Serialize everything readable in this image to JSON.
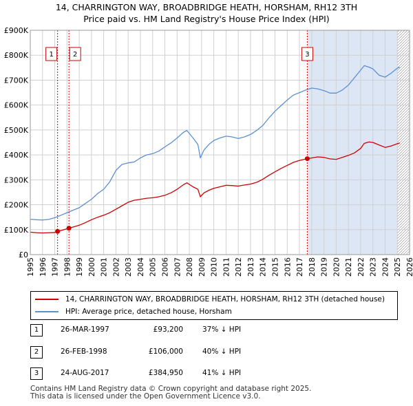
{
  "title_line1": "14, CHARRINGTON WAY, BROADBRIDGE HEATH, HORSHAM, RH12 3TH",
  "title_line2": "Price paid vs. HM Land Registry's House Price Index (HPI)",
  "colors": {
    "property": "#cc0000",
    "hpi": "#5b8fd0",
    "shade": "#dde6f5",
    "marker_line": "#cc0000",
    "grid": "#d0d0d0",
    "hatch": "#999999"
  },
  "chart_data": {
    "type": "line",
    "xlim": [
      1995,
      2026
    ],
    "ylim": [
      0,
      900000
    ],
    "y_ticks": [
      {
        "value": 0,
        "label": "£0"
      },
      {
        "value": 100000,
        "label": "£100K"
      },
      {
        "value": 200000,
        "label": "£200K"
      },
      {
        "value": 300000,
        "label": "£300K"
      },
      {
        "value": 400000,
        "label": "£400K"
      },
      {
        "value": 500000,
        "label": "£500K"
      },
      {
        "value": 600000,
        "label": "£600K"
      },
      {
        "value": 700000,
        "label": "£700K"
      },
      {
        "value": 800000,
        "label": "£800K"
      },
      {
        "value": 900000,
        "label": "£900K"
      }
    ],
    "x_ticks": [
      "1995",
      "1996",
      "1997",
      "1998",
      "1999",
      "2000",
      "2001",
      "2002",
      "2003",
      "2004",
      "2005",
      "2006",
      "2007",
      "2008",
      "2009",
      "2010",
      "2011",
      "2012",
      "2013",
      "2014",
      "2015",
      "2016",
      "2017",
      "2018",
      "2019",
      "2020",
      "2021",
      "2022",
      "2023",
      "2024",
      "2025",
      "2026"
    ],
    "grid": true,
    "series": [
      {
        "name": "14, CHARRINGTON WAY, BROADBRIDGE HEATH, HORSHAM, RH12 3TH (detached house)",
        "color": "#cc0000",
        "x": [
          1995.0,
          1995.5,
          1996.0,
          1996.5,
          1997.0,
          1997.23,
          1997.6,
          1998.16,
          1998.6,
          1999.0,
          1999.5,
          2000.0,
          2000.5,
          2001.0,
          2001.5,
          2002.0,
          2002.5,
          2003.0,
          2003.5,
          2004.0,
          2004.5,
          2005.0,
          2005.5,
          2006.0,
          2006.5,
          2007.0,
          2007.5,
          2007.8,
          2008.3,
          2008.7,
          2008.9,
          2009.2,
          2009.6,
          2010.0,
          2010.5,
          2011.0,
          2011.5,
          2012.0,
          2012.5,
          2013.0,
          2013.5,
          2014.0,
          2014.5,
          2015.0,
          2015.5,
          2016.0,
          2016.5,
          2017.0,
          2017.64,
          2018.0,
          2018.5,
          2019.0,
          2019.5,
          2020.0,
          2020.5,
          2021.0,
          2021.5,
          2022.0,
          2022.3,
          2022.7,
          2023.0,
          2023.5,
          2024.0,
          2024.5,
          2025.0,
          2025.2
        ],
        "y": [
          90000,
          88000,
          87000,
          88000,
          89000,
          93200,
          98000,
          106000,
          112000,
          118000,
          128000,
          140000,
          150000,
          158000,
          168000,
          182000,
          196000,
          210000,
          218000,
          222000,
          226000,
          228000,
          232000,
          238000,
          248000,
          262000,
          280000,
          288000,
          272000,
          262000,
          232000,
          248000,
          258000,
          266000,
          272000,
          278000,
          277000,
          275000,
          279000,
          283000,
          290000,
          302000,
          318000,
          332000,
          346000,
          358000,
          370000,
          378000,
          384950,
          388000,
          392000,
          390000,
          384000,
          382000,
          390000,
          398000,
          408000,
          426000,
          446000,
          452000,
          450000,
          440000,
          430000,
          436000,
          445000,
          448000
        ]
      },
      {
        "name": "HPI: Average price, detached house, Horsham",
        "color": "#5b8fd0",
        "x": [
          1995.0,
          1995.5,
          1996.0,
          1996.5,
          1997.0,
          1997.5,
          1998.0,
          1998.5,
          1999.0,
          1999.5,
          2000.0,
          2000.5,
          2001.0,
          2001.5,
          2002.0,
          2002.5,
          2003.0,
          2003.5,
          2004.0,
          2004.5,
          2005.0,
          2005.5,
          2006.0,
          2006.5,
          2007.0,
          2007.5,
          2007.8,
          2008.3,
          2008.7,
          2008.9,
          2009.2,
          2009.6,
          2010.0,
          2010.5,
          2011.0,
          2011.5,
          2012.0,
          2012.5,
          2013.0,
          2013.5,
          2014.0,
          2014.5,
          2015.0,
          2015.5,
          2016.0,
          2016.5,
          2017.0,
          2017.5,
          2018.0,
          2018.5,
          2019.0,
          2019.5,
          2020.0,
          2020.5,
          2021.0,
          2021.5,
          2022.0,
          2022.3,
          2022.7,
          2023.0,
          2023.5,
          2024.0,
          2024.5,
          2025.0,
          2025.2
        ],
        "y": [
          142000,
          140000,
          139000,
          141000,
          148000,
          158000,
          168000,
          178000,
          188000,
          205000,
          222000,
          245000,
          262000,
          292000,
          338000,
          362000,
          368000,
          372000,
          388000,
          400000,
          405000,
          415000,
          432000,
          448000,
          468000,
          490000,
          498000,
          468000,
          442000,
          388000,
          420000,
          442000,
          458000,
          468000,
          475000,
          472000,
          466000,
          472000,
          482000,
          498000,
          518000,
          548000,
          575000,
          598000,
          620000,
          640000,
          650000,
          660000,
          668000,
          665000,
          658000,
          648000,
          648000,
          660000,
          680000,
          710000,
          740000,
          758000,
          752000,
          745000,
          720000,
          712000,
          728000,
          748000,
          752000
        ]
      }
    ],
    "sales": [
      {
        "marker": "1",
        "x": 1997.23,
        "y": 93200
      },
      {
        "marker": "2",
        "x": 1998.16,
        "y": 106000
      },
      {
        "marker": "3",
        "x": 2017.64,
        "y": 384950
      }
    ]
  },
  "legend": {
    "property_label": "14, CHARRINGTON WAY, BROADBRIDGE HEATH, HORSHAM, RH12 3TH (detached house)",
    "hpi_label": "HPI: Average price, detached house, Horsham"
  },
  "sales_table": [
    {
      "marker": "1",
      "date": "26-MAR-1997",
      "price": "£93,200",
      "hpi": "37% ↓ HPI"
    },
    {
      "marker": "2",
      "date": "26-FEB-1998",
      "price": "£106,000",
      "hpi": "40% ↓ HPI"
    },
    {
      "marker": "3",
      "date": "24-AUG-2017",
      "price": "£384,950",
      "hpi": "41% ↓ HPI"
    }
  ],
  "footer_line1": "Contains HM Land Registry data © Crown copyright and database right 2025.",
  "footer_line2": "This data is licensed under the Open Government Licence v3.0."
}
